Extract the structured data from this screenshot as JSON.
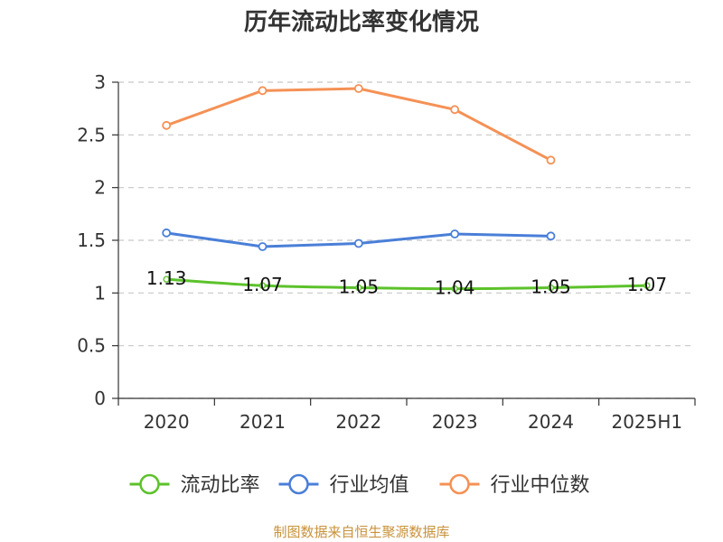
{
  "chart_data": {
    "type": "line",
    "title": "历年流动比率变化情况",
    "categories": [
      "2020",
      "2021",
      "2022",
      "2023",
      "2024",
      "2025H1"
    ],
    "y_ticks": [
      "0",
      "0.5",
      "1",
      "1.5",
      "2",
      "2.5",
      "3"
    ],
    "ylim": [
      0,
      3
    ],
    "grid": true,
    "legend_position": "bottom",
    "series": [
      {
        "name": "流动比率",
        "color": "#5cc22b",
        "values": [
          1.13,
          1.07,
          1.05,
          1.04,
          1.05,
          1.07
        ],
        "labels": [
          "1.13",
          "1.07",
          "1.05",
          "1.04",
          "1.05",
          "1.07"
        ]
      },
      {
        "name": "行业均值",
        "color": "#4a7fd8",
        "values": [
          1.57,
          1.44,
          1.47,
          1.56,
          1.54,
          null
        ]
      },
      {
        "name": "行业中位数",
        "color": "#f59155",
        "values": [
          2.59,
          2.92,
          2.94,
          2.74,
          2.26,
          null
        ]
      }
    ]
  },
  "source": "制图数据来自恒生聚源数据库"
}
